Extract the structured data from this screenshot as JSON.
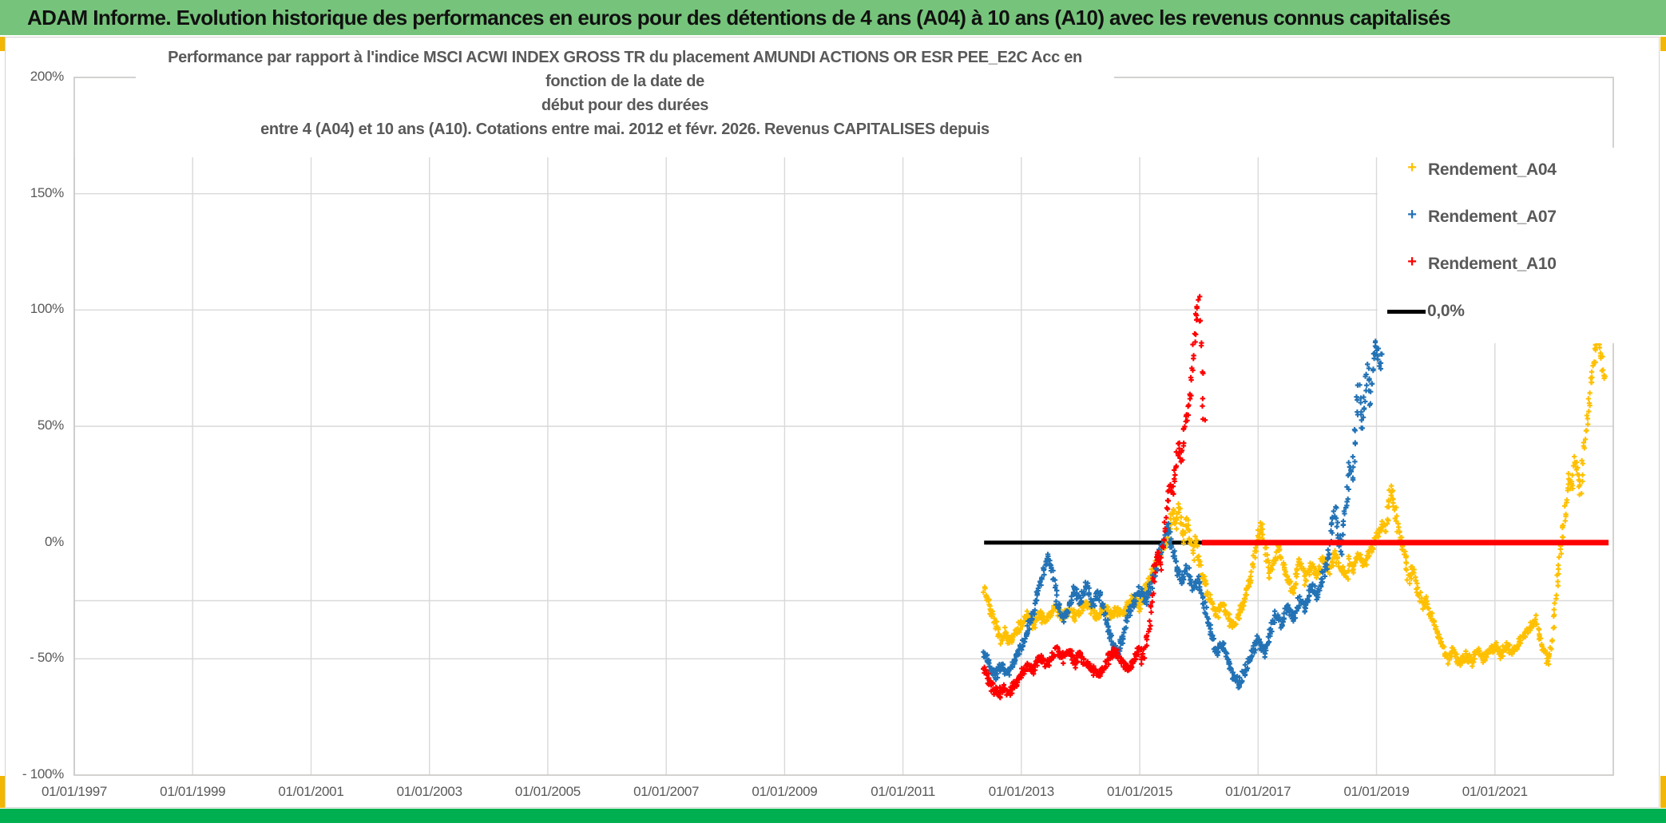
{
  "banner": {
    "title": "ADAM Informe. Evolution historique des performances en euros pour des détentions de 4 ans (A04) à 10 ans (A10) avec les revenus connus capitalisés"
  },
  "chart_title": {
    "line1": "Performance par rapport à l'indice MSCI ACWI INDEX GROSS TR  du placement AMUNDI ACTIONS OR ESR PEE_E2C Acc en fonction de la date de",
    "line2": "début pour des durées",
    "line3": "entre 4 (A04) et 10 ans (A10). Cotations entre mai. 2012 et févr. 2026. Revenus CAPITALISES depuis"
  },
  "colors": {
    "banner_bg": "#76c47b",
    "bottom_bar": "#00b050",
    "gold_accent": "#f2b705",
    "grid": "#d9d9d9",
    "plot_border": "#c8c6c4",
    "text": "#595959",
    "series_a04": "#ffc000",
    "series_a07": "#2272b5",
    "series_a10": "#ff0000",
    "zero_line_black": "#000000",
    "zero_line_red": "#ff0000"
  },
  "chart_data": {
    "type": "scatter",
    "title": "Performance par rapport à l'indice MSCI ACWI INDEX GROSS TR du placement AMUNDI ACTIONS OR ESR PEE_E2C Acc en fonction de la date de début pour des durées entre 4 (A04) et 10 ans (A10). Cotations entre mai. 2012 et févr. 2026. Revenus CAPITALISES depuis",
    "x_axis": {
      "tick_labels": [
        "01/01/1997",
        "01/01/1999",
        "01/01/2001",
        "01/01/2003",
        "01/01/2005",
        "01/01/2007",
        "01/01/2009",
        "01/01/2011",
        "01/01/2013",
        "01/01/2015",
        "01/01/2017",
        "01/01/2019",
        "01/01/2021"
      ],
      "tick_years": [
        1997,
        1999,
        2001,
        2003,
        2005,
        2007,
        2009,
        2011,
        2013,
        2015,
        2017,
        2019,
        2021
      ],
      "range_years": [
        1997,
        2023
      ]
    },
    "y_axis": {
      "tick_labels": [
        "200%",
        "150%",
        "100%",
        "50%",
        "0%",
        "- 50%",
        "- 100%"
      ],
      "tick_values": [
        200,
        150,
        100,
        50,
        0,
        -50,
        -100
      ],
      "range": [
        -100,
        200
      ],
      "gridline_values": [
        150,
        100,
        50,
        -25,
        -50
      ],
      "unit": "percent"
    },
    "legend": [
      {
        "label": "Rendement_A04",
        "marker": "+",
        "color": "#ffc000"
      },
      {
        "label": "Rendement_A07",
        "marker": "+",
        "color": "#2272b5"
      },
      {
        "label": "Rendement_A10",
        "marker": "+",
        "color": "#ff0000"
      },
      {
        "label": "0,0%",
        "marker": "line",
        "color": "#000000"
      }
    ],
    "lines": [
      {
        "name": "zero-line-black",
        "color": "#000000",
        "value": 0,
        "x_start": 2012.37,
        "x_end": 2016.05,
        "width": 5
      },
      {
        "name": "zero-line-red",
        "color": "#ff0000",
        "value": 0,
        "x_start": 2016.05,
        "x_end": 2022.92,
        "width": 7
      }
    ],
    "series": [
      {
        "name": "Rendement_A04",
        "color": "#ffc000",
        "anchors": [
          [
            2012.37,
            -20
          ],
          [
            2012.45,
            -27
          ],
          [
            2012.55,
            -34
          ],
          [
            2012.65,
            -42
          ],
          [
            2012.72,
            -38
          ],
          [
            2012.8,
            -43
          ],
          [
            2012.9,
            -39
          ],
          [
            2013.0,
            -35
          ],
          [
            2013.1,
            -31
          ],
          [
            2013.2,
            -36
          ],
          [
            2013.3,
            -30
          ],
          [
            2013.4,
            -34
          ],
          [
            2013.5,
            -31
          ],
          [
            2013.6,
            -28
          ],
          [
            2013.7,
            -32
          ],
          [
            2013.8,
            -29
          ],
          [
            2013.9,
            -32
          ],
          [
            2014.0,
            -29
          ],
          [
            2014.1,
            -26
          ],
          [
            2014.2,
            -30
          ],
          [
            2014.3,
            -32
          ],
          [
            2014.4,
            -28
          ],
          [
            2014.5,
            -31
          ],
          [
            2014.6,
            -28
          ],
          [
            2014.7,
            -31
          ],
          [
            2014.8,
            -27
          ],
          [
            2014.9,
            -24
          ],
          [
            2015.0,
            -28
          ],
          [
            2015.1,
            -20
          ],
          [
            2015.2,
            -14
          ],
          [
            2015.3,
            -8
          ],
          [
            2015.4,
            -3
          ],
          [
            2015.5,
            4
          ],
          [
            2015.55,
            13
          ],
          [
            2015.6,
            7
          ],
          [
            2015.65,
            16
          ],
          [
            2015.7,
            9
          ],
          [
            2015.75,
            1
          ],
          [
            2015.8,
            10
          ],
          [
            2015.85,
            3
          ],
          [
            2015.9,
            -6
          ],
          [
            2015.95,
            2
          ],
          [
            2016.0,
            -9
          ],
          [
            2016.1,
            -18
          ],
          [
            2016.2,
            -26
          ],
          [
            2016.3,
            -31
          ],
          [
            2016.4,
            -26
          ],
          [
            2016.5,
            -33
          ],
          [
            2016.6,
            -36
          ],
          [
            2016.7,
            -29
          ],
          [
            2016.8,
            -23
          ],
          [
            2016.9,
            -11
          ],
          [
            2017.0,
            3
          ],
          [
            2017.05,
            8
          ],
          [
            2017.1,
            -1
          ],
          [
            2017.2,
            -14
          ],
          [
            2017.3,
            -6
          ],
          [
            2017.35,
            -2
          ],
          [
            2017.45,
            -12
          ],
          [
            2017.55,
            -19
          ],
          [
            2017.6,
            -22
          ],
          [
            2017.65,
            -13
          ],
          [
            2017.7,
            -7
          ],
          [
            2017.8,
            -16
          ],
          [
            2017.9,
            -9
          ],
          [
            2018.0,
            -14
          ],
          [
            2018.1,
            -7
          ],
          [
            2018.2,
            -12
          ],
          [
            2018.3,
            -4
          ],
          [
            2018.4,
            -11
          ],
          [
            2018.5,
            -15
          ],
          [
            2018.55,
            -7
          ],
          [
            2018.6,
            -12
          ],
          [
            2018.7,
            -5
          ],
          [
            2018.8,
            -10
          ],
          [
            2018.9,
            -3
          ],
          [
            2019.0,
            2
          ],
          [
            2019.1,
            9
          ],
          [
            2019.15,
            5
          ],
          [
            2019.2,
            15
          ],
          [
            2019.25,
            23
          ],
          [
            2019.3,
            17
          ],
          [
            2019.35,
            9
          ],
          [
            2019.4,
            3
          ],
          [
            2019.5,
            -9
          ],
          [
            2019.55,
            -16
          ],
          [
            2019.6,
            -11
          ],
          [
            2019.7,
            -21
          ],
          [
            2019.8,
            -28
          ],
          [
            2019.85,
            -23
          ],
          [
            2019.9,
            -31
          ],
          [
            2020.0,
            -36
          ],
          [
            2020.1,
            -44
          ],
          [
            2020.2,
            -50
          ],
          [
            2020.3,
            -46
          ],
          [
            2020.4,
            -52
          ],
          [
            2020.5,
            -48
          ],
          [
            2020.6,
            -51
          ],
          [
            2020.7,
            -46
          ],
          [
            2020.8,
            -50
          ],
          [
            2020.9,
            -47
          ],
          [
            2021.0,
            -45
          ],
          [
            2021.1,
            -48
          ],
          [
            2021.2,
            -44
          ],
          [
            2021.3,
            -47
          ],
          [
            2021.4,
            -43
          ],
          [
            2021.5,
            -40
          ],
          [
            2021.6,
            -36
          ],
          [
            2021.7,
            -33
          ],
          [
            2021.75,
            -39
          ],
          [
            2021.8,
            -44
          ],
          [
            2021.85,
            -48
          ],
          [
            2021.9,
            -51
          ],
          [
            2021.95,
            -46
          ],
          [
            2022.0,
            -32
          ],
          [
            2022.05,
            -18
          ],
          [
            2022.1,
            -6
          ],
          [
            2022.15,
            6
          ],
          [
            2022.2,
            16
          ],
          [
            2022.25,
            28
          ],
          [
            2022.3,
            24
          ],
          [
            2022.35,
            36
          ],
          [
            2022.4,
            30
          ],
          [
            2022.45,
            22
          ],
          [
            2022.5,
            40
          ],
          [
            2022.55,
            52
          ],
          [
            2022.6,
            64
          ],
          [
            2022.65,
            74
          ],
          [
            2022.7,
            82
          ],
          [
            2022.75,
            87
          ],
          [
            2022.8,
            79
          ],
          [
            2022.83,
            70
          ],
          [
            2022.87,
            77
          ]
        ]
      },
      {
        "name": "Rendement_A07",
        "color": "#2272b5",
        "anchors": [
          [
            2012.37,
            -47
          ],
          [
            2012.45,
            -52
          ],
          [
            2012.55,
            -57
          ],
          [
            2012.65,
            -53
          ],
          [
            2012.75,
            -57
          ],
          [
            2012.85,
            -52
          ],
          [
            2012.95,
            -47
          ],
          [
            2013.05,
            -42
          ],
          [
            2013.15,
            -34
          ],
          [
            2013.25,
            -24
          ],
          [
            2013.35,
            -14
          ],
          [
            2013.45,
            -6
          ],
          [
            2013.5,
            -10
          ],
          [
            2013.55,
            -16
          ],
          [
            2013.6,
            -25
          ],
          [
            2013.7,
            -32
          ],
          [
            2013.8,
            -28
          ],
          [
            2013.9,
            -20
          ],
          [
            2014.0,
            -26
          ],
          [
            2014.1,
            -18
          ],
          [
            2014.2,
            -27
          ],
          [
            2014.3,
            -21
          ],
          [
            2014.4,
            -30
          ],
          [
            2014.5,
            -40
          ],
          [
            2014.6,
            -48
          ],
          [
            2014.7,
            -42
          ],
          [
            2014.8,
            -31
          ],
          [
            2014.9,
            -26
          ],
          [
            2015.0,
            -21
          ],
          [
            2015.1,
            -25
          ],
          [
            2015.2,
            -18
          ],
          [
            2015.3,
            -8
          ],
          [
            2015.4,
            0
          ],
          [
            2015.45,
            8
          ],
          [
            2015.5,
            3
          ],
          [
            2015.6,
            -8
          ],
          [
            2015.7,
            -17
          ],
          [
            2015.8,
            -11
          ],
          [
            2015.9,
            -20
          ],
          [
            2016.0,
            -16
          ],
          [
            2016.1,
            -28
          ],
          [
            2016.2,
            -38
          ],
          [
            2016.3,
            -47
          ],
          [
            2016.4,
            -43
          ],
          [
            2016.5,
            -52
          ],
          [
            2016.6,
            -58
          ],
          [
            2016.7,
            -61
          ],
          [
            2016.8,
            -54
          ],
          [
            2016.9,
            -47
          ],
          [
            2017.0,
            -41
          ],
          [
            2017.1,
            -47
          ],
          [
            2017.2,
            -39
          ],
          [
            2017.3,
            -31
          ],
          [
            2017.4,
            -36
          ],
          [
            2017.5,
            -27
          ],
          [
            2017.6,
            -33
          ],
          [
            2017.7,
            -24
          ],
          [
            2017.8,
            -28
          ],
          [
            2017.9,
            -19
          ],
          [
            2018.0,
            -23
          ],
          [
            2018.1,
            -14
          ],
          [
            2018.2,
            -4
          ],
          [
            2018.25,
            8
          ],
          [
            2018.3,
            15
          ],
          [
            2018.35,
            4
          ],
          [
            2018.4,
            -3
          ],
          [
            2018.45,
            9
          ],
          [
            2018.5,
            18
          ],
          [
            2018.55,
            35
          ],
          [
            2018.6,
            28
          ],
          [
            2018.65,
            50
          ],
          [
            2018.7,
            68
          ],
          [
            2018.75,
            48
          ],
          [
            2018.8,
            62
          ],
          [
            2018.85,
            75
          ],
          [
            2018.9,
            60
          ],
          [
            2018.95,
            80
          ],
          [
            2019.0,
            87
          ],
          [
            2019.05,
            75
          ],
          [
            2019.1,
            85
          ]
        ]
      },
      {
        "name": "Rendement_A10",
        "color": "#ff0000",
        "anchors": [
          [
            2012.37,
            -54
          ],
          [
            2012.45,
            -60
          ],
          [
            2012.55,
            -64
          ],
          [
            2012.62,
            -66
          ],
          [
            2012.7,
            -62
          ],
          [
            2012.8,
            -64
          ],
          [
            2012.9,
            -60
          ],
          [
            2013.0,
            -57
          ],
          [
            2013.1,
            -52
          ],
          [
            2013.2,
            -55
          ],
          [
            2013.3,
            -49
          ],
          [
            2013.4,
            -53
          ],
          [
            2013.5,
            -50
          ],
          [
            2013.6,
            -46
          ],
          [
            2013.7,
            -50
          ],
          [
            2013.8,
            -47
          ],
          [
            2013.9,
            -52
          ],
          [
            2014.0,
            -48
          ],
          [
            2014.1,
            -52
          ],
          [
            2014.2,
            -55
          ],
          [
            2014.3,
            -57
          ],
          [
            2014.4,
            -53
          ],
          [
            2014.5,
            -49
          ],
          [
            2014.6,
            -46
          ],
          [
            2014.7,
            -52
          ],
          [
            2014.8,
            -55
          ],
          [
            2014.9,
            -51
          ],
          [
            2015.0,
            -46
          ],
          [
            2015.05,
            -50
          ],
          [
            2015.1,
            -44
          ],
          [
            2015.15,
            -38
          ],
          [
            2015.2,
            -25
          ],
          [
            2015.25,
            -12
          ],
          [
            2015.3,
            -4
          ],
          [
            2015.35,
            -10
          ],
          [
            2015.4,
            2
          ],
          [
            2015.45,
            14
          ],
          [
            2015.5,
            25
          ],
          [
            2015.55,
            20
          ],
          [
            2015.6,
            30
          ],
          [
            2015.65,
            42
          ],
          [
            2015.7,
            35
          ],
          [
            2015.75,
            48
          ],
          [
            2015.8,
            55
          ],
          [
            2015.85,
            65
          ],
          [
            2015.9,
            80
          ],
          [
            2015.95,
            95
          ],
          [
            2016.0,
            104
          ],
          [
            2016.04,
            85
          ],
          [
            2016.07,
            60
          ],
          [
            2016.1,
            45
          ]
        ]
      }
    ]
  }
}
